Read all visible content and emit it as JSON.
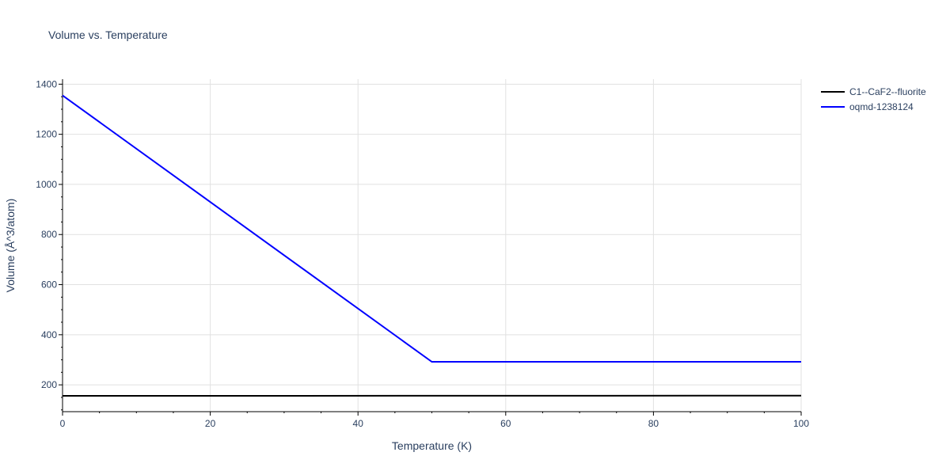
{
  "title": "Volume vs. Temperature",
  "legend": [
    {
      "label": "C1--CaF2--fluorite",
      "color": "#000000"
    },
    {
      "label": "oqmd-1238124",
      "color": "#0000ff"
    }
  ],
  "chart_data": {
    "type": "line",
    "title": "Volume vs. Temperature",
    "xlabel": "Temperature (K)",
    "ylabel": "Volume (Å^3/atom)",
    "xlim": [
      0,
      100
    ],
    "ylim": [
      93,
      1420
    ],
    "xticks": [
      0,
      20,
      40,
      60,
      80,
      100
    ],
    "yticks": [
      200,
      400,
      600,
      800,
      1000,
      1200,
      1400
    ],
    "grid": true,
    "legend_position": "top-right outside",
    "series": [
      {
        "name": "C1--CaF2--fluorite",
        "color": "#000000",
        "x": [
          0,
          100
        ],
        "y": [
          156,
          157
        ]
      },
      {
        "name": "oqmd-1238124",
        "color": "#0000ff",
        "x": [
          0,
          50,
          100
        ],
        "y": [
          1355,
          292,
          292
        ]
      }
    ]
  }
}
